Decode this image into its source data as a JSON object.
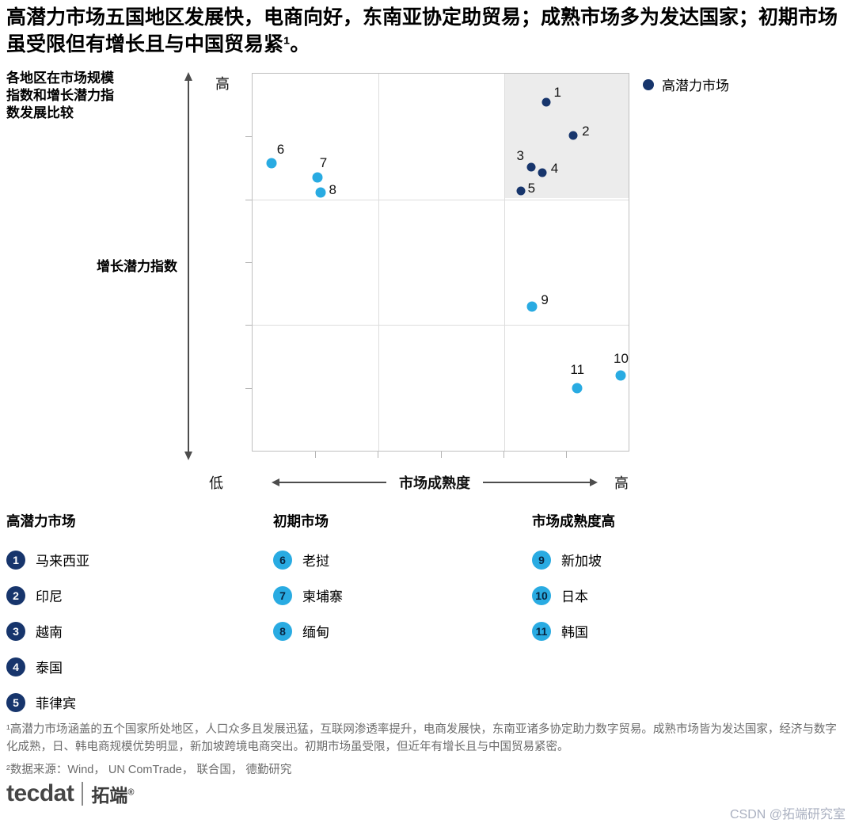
{
  "header": {
    "title": "高潜力市场五国地区发展快，电商向好，东南亚协定助贸易；成熟市场多为发达国家；初期市场虽受限但有增长且与中国贸易紧¹。"
  },
  "chart_labels": {
    "side_note": "各地区在市场规模指数和增长潜力指数发展比较",
    "ylabel": "增长潜力指数",
    "xlabel": "市场成熟度",
    "y_high": "高",
    "x_low": "低",
    "x_high": "高",
    "legend_label": "高潜力市场"
  },
  "colors": {
    "navy": "#17356c",
    "cyan": "#29abe2",
    "region_gray": "#ececec"
  },
  "chart_data": {
    "type": "scatter",
    "title": "各地区在市场规模指数和增长潜力指数发展比较",
    "xlabel": "市场成熟度",
    "ylabel": "增长潜力指数",
    "xlim": [
      0,
      100
    ],
    "ylim": [
      0,
      100
    ],
    "grid": "3x3 quadrant gridlines, minor ticks at sixths",
    "legend_position": "top-right",
    "legend": [
      {
        "label": "高潜力市场",
        "color": "#17356c"
      }
    ],
    "highlight_region": {
      "x0": 67,
      "x1": 100,
      "y0": 67,
      "y1": 100,
      "color": "#ececec"
    },
    "series": [
      {
        "name": "高潜力市场",
        "color": "#17356c",
        "marker_size": 11,
        "points": [
          {
            "id": 1,
            "label": "马来西亚",
            "x": 78.0,
            "y": 92.5
          },
          {
            "id": 2,
            "label": "印尼",
            "x": 85.3,
            "y": 83.7
          },
          {
            "id": 3,
            "label": "越南",
            "x": 74.2,
            "y": 75.3
          },
          {
            "id": 4,
            "label": "泰国",
            "x": 77.0,
            "y": 73.8
          },
          {
            "id": 5,
            "label": "菲律宾",
            "x": 71.3,
            "y": 69.0
          }
        ]
      },
      {
        "name": "初期市场",
        "color": "#29abe2",
        "marker_size": 13,
        "points": [
          {
            "id": 6,
            "label": "老挝",
            "x": 5.0,
            "y": 76.2
          },
          {
            "id": 7,
            "label": "柬埔寨",
            "x": 17.2,
            "y": 72.4
          },
          {
            "id": 8,
            "label": "缅甸",
            "x": 18.0,
            "y": 68.4
          }
        ]
      },
      {
        "name": "市场成熟度高",
        "color": "#29abe2",
        "marker_size": 13,
        "points": [
          {
            "id": 9,
            "label": "新加坡",
            "x": 74.4,
            "y": 38.3
          },
          {
            "id": 10,
            "label": "日本",
            "x": 97.9,
            "y": 19.9
          },
          {
            "id": 11,
            "label": "韩国",
            "x": 86.4,
            "y": 16.7
          }
        ]
      }
    ]
  },
  "legend_columns": [
    {
      "header": "高潜力市场",
      "style": "navy",
      "items": [
        {
          "num": "1",
          "label": "马来西亚"
        },
        {
          "num": "2",
          "label": "印尼"
        },
        {
          "num": "3",
          "label": "越南"
        },
        {
          "num": "4",
          "label": "泰国"
        },
        {
          "num": "5",
          "label": "菲律宾"
        }
      ]
    },
    {
      "header": "初期市场",
      "style": "cyan",
      "items": [
        {
          "num": "6",
          "label": "老挝"
        },
        {
          "num": "7",
          "label": "柬埔寨"
        },
        {
          "num": "8",
          "label": "缅甸"
        }
      ]
    },
    {
      "header": "市场成熟度高",
      "style": "cyan",
      "items": [
        {
          "num": "9",
          "label": "新加坡"
        },
        {
          "num": "10",
          "label": "日本"
        },
        {
          "num": "11",
          "label": "韩国"
        }
      ]
    }
  ],
  "footnotes": {
    "note1": "¹高潜力市场涵盖的五个国家所处地区，人口众多且发展迅猛，互联网渗透率提升，电商发展快，东南亚诸多协定助力数字贸易。成熟市场皆为发达国家，经济与数字化成熟，日、韩电商规模优势明显，新加坡跨境电商突出。初期市场虽受限，但近年有增长且与中国贸易紧密。",
    "note2": "²数据来源：Wind， UN ComTrade， 联合国， 德勤研究"
  },
  "logo": {
    "brand": "tecdat",
    "name_cn": "拓端",
    "reg": "®"
  },
  "watermark": "CSDN @拓端研究室"
}
